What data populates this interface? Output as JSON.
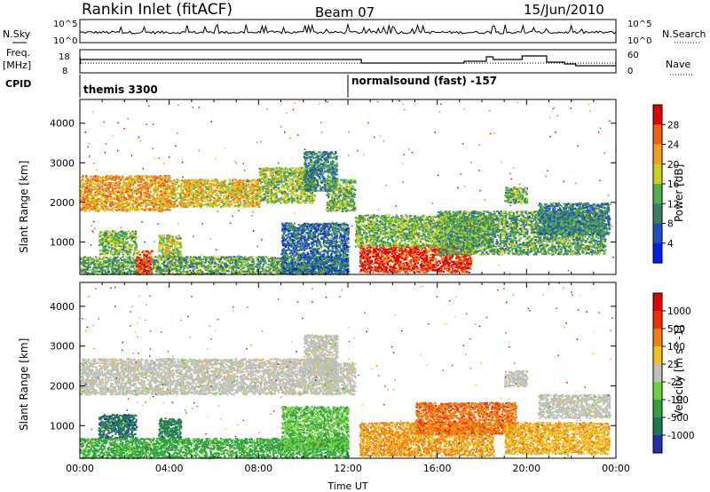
{
  "header": {
    "station_title": "Rankin Inlet (fitACF)",
    "beam": "Beam 07",
    "date": "15/Jun/2010"
  },
  "top_panels": {
    "nsky_label": "N.Sky",
    "nsearch_label": "N.Search",
    "nsky_ticks": [
      "10^5",
      "10^0"
    ],
    "nsearch_ticks": [
      "10^5",
      "10^0"
    ],
    "freq_label_1": "Freq.",
    "freq_label_2": "[MHz]",
    "freq_ticks": [
      "18",
      "8"
    ],
    "nave_label": "Nave",
    "nave_ticks": [
      "60",
      "0"
    ],
    "cpid_label": "CPID",
    "cpid_modes": [
      {
        "label": "themis 3300",
        "start_hour": 0
      },
      {
        "label": "normalsound (fast) -157",
        "start_hour": 12.0
      }
    ]
  },
  "chart_data": [
    {
      "type": "heatmap",
      "title": "",
      "xlabel": "",
      "ylabel": "Slant Range [km]",
      "xlim_hours": [
        0,
        24
      ],
      "ylim_km": [
        180,
        4600
      ],
      "yticks": [
        1000,
        2000,
        3000,
        4000
      ],
      "colorbar": {
        "label": "Power [dB]",
        "ticks": [
          "28",
          "24",
          "20",
          "16",
          "12",
          "8",
          "4"
        ],
        "colors": [
          "#0020e0",
          "#2050c0",
          "#3c7f60",
          "#50b050",
          "#c8d020",
          "#f0a020",
          "#f06010",
          "#e00000"
        ]
      },
      "regions": [
        {
          "x0": 0.0,
          "x1": 4.0,
          "r0": 1800,
          "r1": 2700,
          "level": 0.7
        },
        {
          "x0": 4.0,
          "x1": 8.0,
          "r0": 1900,
          "r1": 2600,
          "level": 0.62
        },
        {
          "x0": 8.0,
          "x1": 10.5,
          "r0": 2000,
          "r1": 2900,
          "level": 0.5
        },
        {
          "x0": 10.0,
          "x1": 11.5,
          "r0": 2300,
          "r1": 3300,
          "level": 0.3
        },
        {
          "x0": 11.0,
          "x1": 12.3,
          "r0": 1800,
          "r1": 2600,
          "level": 0.45
        },
        {
          "x0": 0.8,
          "x1": 2.5,
          "r0": 700,
          "r1": 1300,
          "level": 0.45
        },
        {
          "x0": 3.5,
          "x1": 4.5,
          "r0": 600,
          "r1": 1200,
          "level": 0.55
        },
        {
          "x0": 0.0,
          "x1": 12.0,
          "r0": 200,
          "r1": 650,
          "level": 0.4
        },
        {
          "x0": 2.5,
          "x1": 3.2,
          "r0": 200,
          "r1": 800,
          "level": 0.85
        },
        {
          "x0": 9.0,
          "x1": 12.0,
          "r0": 200,
          "r1": 1500,
          "level": 0.25
        },
        {
          "x0": 12.5,
          "x1": 17.5,
          "r0": 250,
          "r1": 950,
          "level": 0.9
        },
        {
          "x0": 12.3,
          "x1": 18.5,
          "r0": 900,
          "r1": 1700,
          "level": 0.45
        },
        {
          "x0": 16.0,
          "x1": 23.5,
          "r0": 700,
          "r1": 1800,
          "level": 0.4
        },
        {
          "x0": 19.0,
          "x1": 20.0,
          "r0": 2000,
          "r1": 2400,
          "level": 0.45
        },
        {
          "x0": 20.5,
          "x1": 23.7,
          "r0": 1200,
          "r1": 2000,
          "level": 0.3
        }
      ]
    },
    {
      "type": "heatmap",
      "title": "",
      "xlabel": "Time UT",
      "ylabel": "Slant Range [km]",
      "xlim_hours": [
        0,
        24
      ],
      "ylim_km": [
        180,
        4600
      ],
      "xticks": [
        "00:00",
        "04:00",
        "08:00",
        "12:00",
        "16:00",
        "20:00",
        "00:00"
      ],
      "yticks": [
        1000,
        2000,
        3000,
        4000
      ],
      "colorbar": {
        "label": "Velocity [m s^-1]",
        "ticks": [
          "1000",
          "500",
          "100",
          "25",
          "-25",
          "-100",
          "-500",
          "-1000"
        ],
        "colors": [
          "#2030b0",
          "#207850",
          "#30a040",
          "#70d040",
          "#c0c0b8",
          "#f0c020",
          "#f08010",
          "#f03000",
          "#e00000"
        ]
      },
      "regions": [
        {
          "x0": 0.0,
          "x1": 11.5,
          "r0": 1800,
          "r1": 2700,
          "level": 0.5
        },
        {
          "x0": 10.0,
          "x1": 11.5,
          "r0": 2300,
          "r1": 3300,
          "level": 0.5
        },
        {
          "x0": 11.0,
          "x1": 12.3,
          "r0": 1800,
          "r1": 2600,
          "level": 0.5
        },
        {
          "x0": 0.8,
          "x1": 2.5,
          "r0": 700,
          "r1": 1300,
          "level": 0.15
        },
        {
          "x0": 3.5,
          "x1": 4.5,
          "r0": 600,
          "r1": 1200,
          "level": 0.2
        },
        {
          "x0": 0.0,
          "x1": 12.0,
          "r0": 200,
          "r1": 700,
          "level": 0.3
        },
        {
          "x0": 9.0,
          "x1": 12.0,
          "r0": 400,
          "r1": 1500,
          "level": 0.35
        },
        {
          "x0": 12.5,
          "x1": 18.5,
          "r0": 250,
          "r1": 1100,
          "level": 0.68
        },
        {
          "x0": 15.0,
          "x1": 19.5,
          "r0": 800,
          "r1": 1600,
          "level": 0.75
        },
        {
          "x0": 19.0,
          "x1": 23.7,
          "r0": 300,
          "r1": 1100,
          "level": 0.65
        },
        {
          "x0": 19.0,
          "x1": 20.0,
          "r0": 2000,
          "r1": 2400,
          "level": 0.5
        },
        {
          "x0": 20.5,
          "x1": 23.7,
          "r0": 1200,
          "r1": 1800,
          "level": 0.5
        }
      ]
    }
  ]
}
